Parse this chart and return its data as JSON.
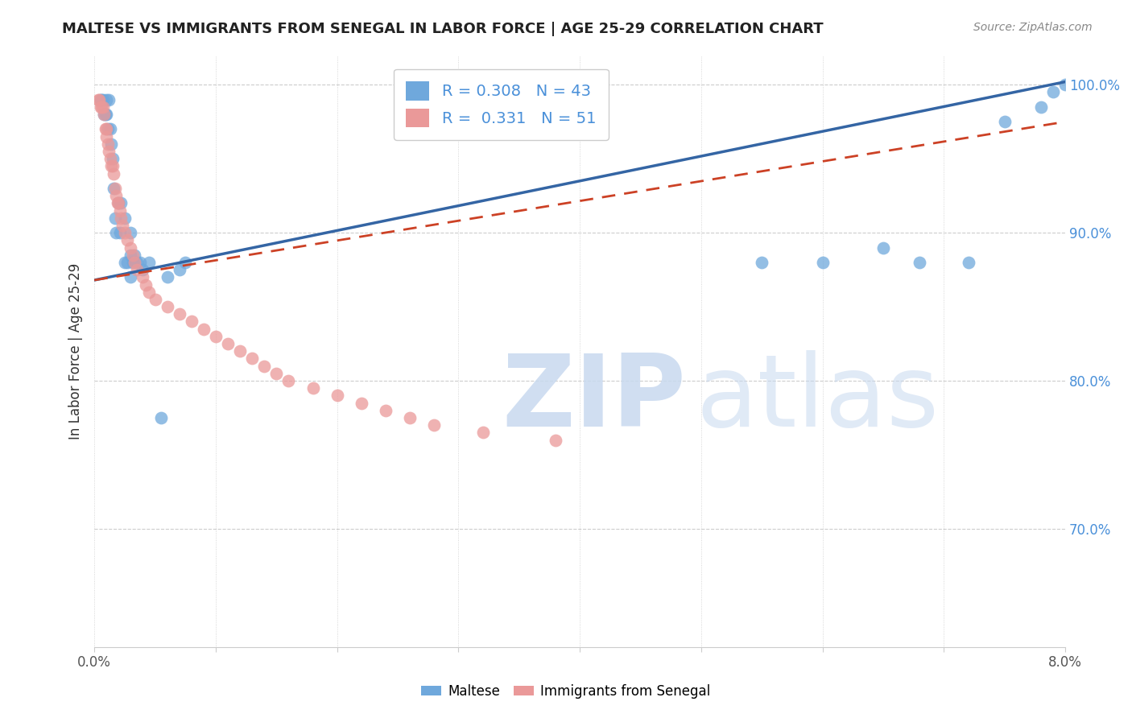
{
  "title": "MALTESE VS IMMIGRANTS FROM SENEGAL IN LABOR FORCE | AGE 25-29 CORRELATION CHART",
  "source_text": "Source: ZipAtlas.com",
  "ylabel": "In Labor Force | Age 25-29",
  "xlim": [
    0.0,
    0.08
  ],
  "ylim": [
    0.62,
    1.02
  ],
  "ytick_labels_right": [
    "70.0%",
    "80.0%",
    "90.0%",
    "100.0%"
  ],
  "yticks_right": [
    0.7,
    0.8,
    0.9,
    1.0
  ],
  "legend_blue_R": "0.308",
  "legend_blue_N": "43",
  "legend_pink_R": "0.331",
  "legend_pink_N": "51",
  "blue_color": "#6fa8dc",
  "pink_color": "#ea9999",
  "blue_line_color": "#3465a4",
  "pink_line_color": "#cc4125",
  "maltese_x": [
    0.0005,
    0.0006,
    0.0007,
    0.0008,
    0.0009,
    0.001,
    0.001,
    0.0011,
    0.0012,
    0.0013,
    0.0014,
    0.0015,
    0.0016,
    0.0017,
    0.0018,
    0.002,
    0.0021,
    0.0022,
    0.0025,
    0.003,
    0.0025,
    0.0027,
    0.003,
    0.003,
    0.0032,
    0.0033,
    0.0035,
    0.0038,
    0.004,
    0.0045,
    0.006,
    0.007,
    0.0075,
    0.0055,
    0.055,
    0.06,
    0.065,
    0.068,
    0.072,
    0.075,
    0.078,
    0.079,
    0.08
  ],
  "maltese_y": [
    0.99,
    0.99,
    0.99,
    0.98,
    0.98,
    0.99,
    0.98,
    0.97,
    0.99,
    0.97,
    0.96,
    0.95,
    0.93,
    0.91,
    0.9,
    0.92,
    0.9,
    0.92,
    0.91,
    0.9,
    0.88,
    0.88,
    0.885,
    0.87,
    0.88,
    0.885,
    0.88,
    0.88,
    0.875,
    0.88,
    0.87,
    0.875,
    0.88,
    0.775,
    0.88,
    0.88,
    0.89,
    0.88,
    0.88,
    0.975,
    0.985,
    0.995,
    1.0
  ],
  "senegal_x": [
    0.0003,
    0.0004,
    0.0005,
    0.0006,
    0.0007,
    0.0008,
    0.0009,
    0.001,
    0.001,
    0.0011,
    0.0012,
    0.0013,
    0.0014,
    0.0015,
    0.0016,
    0.0017,
    0.0018,
    0.0019,
    0.002,
    0.0021,
    0.0022,
    0.0023,
    0.0025,
    0.0027,
    0.003,
    0.0032,
    0.0033,
    0.0035,
    0.004,
    0.0042,
    0.0045,
    0.005,
    0.006,
    0.007,
    0.008,
    0.009,
    0.01,
    0.011,
    0.012,
    0.013,
    0.014,
    0.015,
    0.016,
    0.018,
    0.02,
    0.022,
    0.024,
    0.026,
    0.028,
    0.032,
    0.038
  ],
  "senegal_y": [
    0.99,
    0.99,
    0.985,
    0.985,
    0.985,
    0.98,
    0.97,
    0.97,
    0.965,
    0.96,
    0.955,
    0.95,
    0.945,
    0.945,
    0.94,
    0.93,
    0.925,
    0.92,
    0.92,
    0.915,
    0.91,
    0.905,
    0.9,
    0.895,
    0.89,
    0.885,
    0.88,
    0.875,
    0.87,
    0.865,
    0.86,
    0.855,
    0.85,
    0.845,
    0.84,
    0.835,
    0.83,
    0.825,
    0.82,
    0.815,
    0.81,
    0.805,
    0.8,
    0.795,
    0.79,
    0.785,
    0.78,
    0.775,
    0.77,
    0.765,
    0.76
  ]
}
